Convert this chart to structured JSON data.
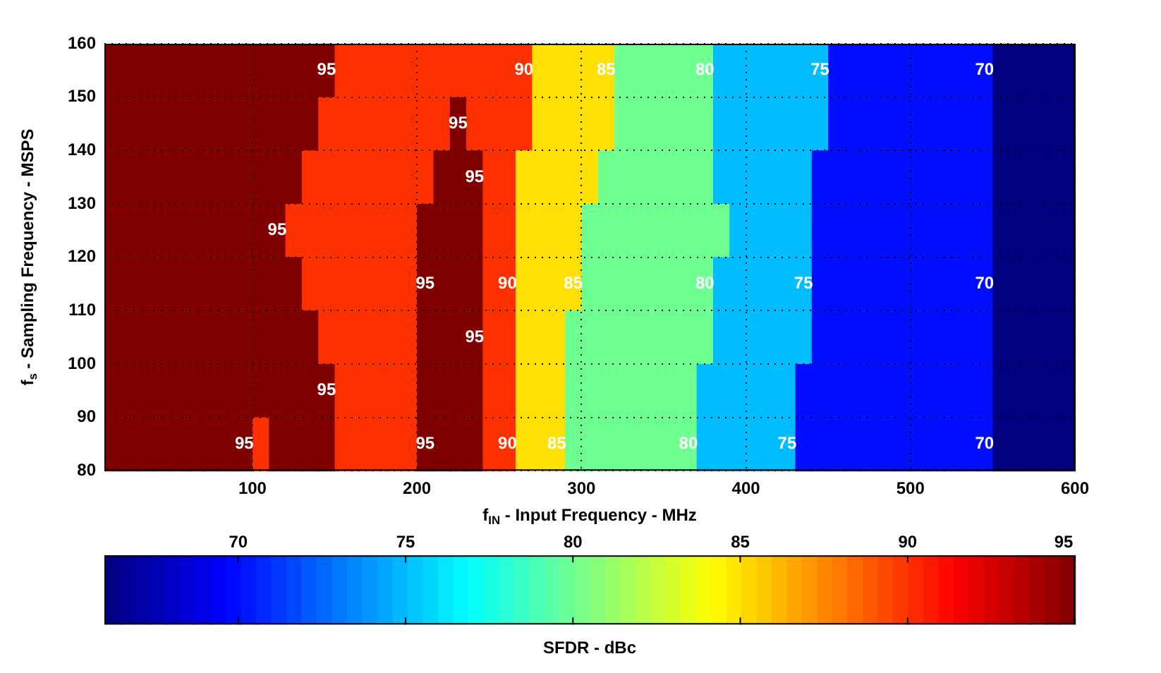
{
  "chart_data": {
    "type": "heatmap",
    "xlabel": "f$_{IN}$ - Input Frequency - MHz",
    "ylabel": "f$_{s}$ - Sampling Frequency - MSPS",
    "clabel": "SFDR - dBc",
    "xlim": [
      10,
      600
    ],
    "xticks": [
      100,
      200,
      300,
      400,
      500,
      600
    ],
    "ylim": [
      80,
      160
    ],
    "yticks": [
      80,
      90,
      100,
      110,
      120,
      130,
      140,
      150,
      160
    ],
    "clim": [
      66,
      95
    ],
    "cticks": [
      70,
      75,
      80,
      85,
      90,
      95
    ],
    "grid": true,
    "cells": [
      [
        95,
        95,
        95,
        95,
        95,
        95,
        95,
        95,
        95,
        95,
        95,
        95,
        95,
        95,
        90,
        90,
        90,
        90,
        90,
        90,
        90,
        90,
        90,
        90,
        90,
        90,
        85,
        85,
        85,
        85,
        85,
        80,
        80,
        80,
        80,
        80,
        80,
        75,
        75,
        75,
        75,
        75,
        75,
        75,
        70,
        70,
        70,
        70,
        70,
        70,
        70,
        70,
        70,
        70,
        66,
        66,
        66,
        66,
        66
      ],
      [
        95,
        95,
        95,
        95,
        95,
        95,
        95,
        95,
        95,
        95,
        95,
        95,
        95,
        90,
        90,
        90,
        90,
        90,
        90,
        90,
        90,
        95,
        90,
        90,
        90,
        90,
        85,
        85,
        85,
        85,
        85,
        80,
        80,
        80,
        80,
        80,
        80,
        75,
        75,
        75,
        75,
        75,
        75,
        75,
        70,
        70,
        70,
        70,
        70,
        70,
        70,
        70,
        70,
        70,
        66,
        66,
        66,
        66,
        66
      ],
      [
        95,
        95,
        95,
        95,
        95,
        95,
        95,
        95,
        95,
        95,
        95,
        95,
        90,
        90,
        90,
        90,
        90,
        90,
        90,
        90,
        95,
        95,
        95,
        90,
        90,
        85,
        85,
        85,
        85,
        85,
        80,
        80,
        80,
        80,
        80,
        80,
        80,
        75,
        75,
        75,
        75,
        75,
        75,
        70,
        70,
        70,
        70,
        70,
        70,
        70,
        70,
        70,
        70,
        70,
        66,
        66,
        66,
        66,
        66
      ],
      [
        95,
        95,
        95,
        95,
        95,
        95,
        95,
        95,
        95,
        95,
        95,
        90,
        90,
        90,
        90,
        90,
        90,
        90,
        90,
        95,
        95,
        95,
        95,
        90,
        90,
        85,
        85,
        85,
        85,
        80,
        80,
        80,
        80,
        80,
        80,
        80,
        80,
        80,
        75,
        75,
        75,
        75,
        75,
        70,
        70,
        70,
        70,
        70,
        70,
        70,
        70,
        70,
        70,
        70,
        66,
        66,
        66,
        66,
        66
      ],
      [
        95,
        95,
        95,
        95,
        95,
        95,
        95,
        95,
        95,
        95,
        95,
        95,
        90,
        90,
        90,
        90,
        90,
        90,
        90,
        95,
        95,
        95,
        95,
        90,
        90,
        85,
        85,
        85,
        85,
        80,
        80,
        80,
        80,
        80,
        80,
        80,
        80,
        75,
        75,
        75,
        75,
        75,
        75,
        70,
        70,
        70,
        70,
        70,
        70,
        70,
        70,
        70,
        70,
        70,
        66,
        66,
        66,
        66,
        66
      ],
      [
        95,
        95,
        95,
        95,
        95,
        95,
        95,
        95,
        95,
        95,
        95,
        95,
        95,
        90,
        90,
        90,
        90,
        90,
        90,
        95,
        95,
        95,
        95,
        90,
        90,
        85,
        85,
        85,
        80,
        80,
        80,
        80,
        80,
        80,
        80,
        80,
        80,
        75,
        75,
        75,
        75,
        75,
        75,
        70,
        70,
        70,
        70,
        70,
        70,
        70,
        70,
        70,
        70,
        70,
        66,
        66,
        66,
        66,
        66
      ],
      [
        95,
        95,
        95,
        95,
        95,
        95,
        95,
        95,
        95,
        95,
        95,
        95,
        95,
        95,
        90,
        90,
        90,
        90,
        90,
        95,
        95,
        95,
        95,
        90,
        90,
        85,
        85,
        85,
        80,
        80,
        80,
        80,
        80,
        80,
        80,
        80,
        75,
        75,
        75,
        75,
        75,
        75,
        70,
        70,
        70,
        70,
        70,
        70,
        70,
        70,
        70,
        70,
        70,
        70,
        66,
        66,
        66,
        66,
        66
      ],
      [
        95,
        95,
        95,
        95,
        95,
        95,
        95,
        95,
        95,
        90,
        95,
        95,
        95,
        95,
        90,
        90,
        90,
        90,
        90,
        95,
        95,
        95,
        95,
        90,
        90,
        85,
        85,
        85,
        80,
        80,
        80,
        80,
        80,
        80,
        80,
        80,
        75,
        75,
        75,
        75,
        75,
        75,
        70,
        70,
        70,
        70,
        70,
        70,
        70,
        70,
        70,
        70,
        70,
        70,
        66,
        66,
        66,
        66,
        66
      ]
    ],
    "cell_labels": [
      [
        null,
        null,
        null,
        null,
        null,
        null,
        null,
        null,
        null,
        null,
        null,
        null,
        null,
        "95",
        null,
        null,
        null,
        null,
        null,
        null,
        null,
        null,
        null,
        null,
        null,
        "90",
        null,
        null,
        null,
        null,
        "85",
        null,
        null,
        null,
        null,
        null,
        "80",
        null,
        null,
        null,
        null,
        null,
        null,
        "75",
        null,
        null,
        null,
        null,
        null,
        null,
        null,
        null,
        null,
        "70",
        null,
        null,
        null,
        null,
        null
      ],
      [
        null,
        null,
        null,
        null,
        null,
        null,
        null,
        null,
        null,
        null,
        null,
        null,
        null,
        null,
        null,
        null,
        null,
        null,
        null,
        null,
        null,
        "95",
        null,
        null,
        null,
        null,
        null,
        null,
        null,
        null,
        null,
        null,
        null,
        null,
        null,
        null,
        null,
        null,
        null,
        null,
        null,
        null,
        null,
        null,
        null,
        null,
        null,
        null,
        null,
        null,
        null,
        null,
        null,
        null,
        null,
        null,
        null,
        null,
        null
      ],
      [
        null,
        null,
        null,
        null,
        null,
        null,
        null,
        null,
        null,
        null,
        null,
        null,
        null,
        null,
        null,
        null,
        null,
        null,
        null,
        null,
        null,
        null,
        "95",
        null,
        null,
        null,
        null,
        null,
        null,
        null,
        null,
        null,
        null,
        null,
        null,
        null,
        null,
        null,
        null,
        null,
        null,
        null,
        null,
        null,
        null,
        null,
        null,
        null,
        null,
        null,
        null,
        null,
        null,
        null,
        null,
        null,
        null,
        null,
        null
      ],
      [
        null,
        null,
        null,
        null,
        null,
        null,
        null,
        null,
        null,
        null,
        "95",
        null,
        null,
        null,
        null,
        null,
        null,
        null,
        null,
        null,
        null,
        null,
        null,
        null,
        null,
        null,
        null,
        null,
        null,
        null,
        null,
        null,
        null,
        null,
        null,
        null,
        null,
        null,
        null,
        null,
        null,
        null,
        null,
        null,
        null,
        null,
        null,
        null,
        null,
        null,
        null,
        null,
        null,
        null,
        null,
        null,
        null,
        null,
        null
      ],
      [
        null,
        null,
        null,
        null,
        null,
        null,
        null,
        null,
        null,
        null,
        null,
        null,
        null,
        null,
        null,
        null,
        null,
        null,
        null,
        "95",
        null,
        null,
        null,
        null,
        "90",
        null,
        null,
        null,
        "85",
        null,
        null,
        null,
        null,
        null,
        null,
        null,
        "80",
        null,
        null,
        null,
        null,
        null,
        "75",
        null,
        null,
        null,
        null,
        null,
        null,
        null,
        null,
        null,
        null,
        "70",
        null,
        null,
        null,
        null,
        null
      ],
      [
        null,
        null,
        null,
        null,
        null,
        null,
        null,
        null,
        null,
        null,
        null,
        null,
        null,
        null,
        null,
        null,
        null,
        null,
        null,
        null,
        null,
        null,
        "95",
        null,
        null,
        null,
        null,
        null,
        null,
        null,
        null,
        null,
        null,
        null,
        null,
        null,
        null,
        null,
        null,
        null,
        null,
        null,
        null,
        null,
        null,
        null,
        null,
        null,
        null,
        null,
        null,
        null,
        null,
        null,
        null,
        null,
        null,
        null,
        null
      ],
      [
        null,
        null,
        null,
        null,
        null,
        null,
        null,
        null,
        null,
        null,
        null,
        null,
        null,
        "95",
        null,
        null,
        null,
        null,
        null,
        null,
        null,
        null,
        null,
        null,
        null,
        null,
        null,
        null,
        null,
        null,
        null,
        null,
        null,
        null,
        null,
        null,
        null,
        null,
        null,
        null,
        null,
        null,
        null,
        null,
        null,
        null,
        null,
        null,
        null,
        null,
        null,
        null,
        null,
        null,
        null,
        null,
        null,
        null,
        null
      ],
      [
        null,
        null,
        null,
        null,
        null,
        null,
        null,
        null,
        "95",
        null,
        null,
        null,
        null,
        null,
        null,
        null,
        null,
        null,
        null,
        "95",
        null,
        null,
        null,
        null,
        "90",
        null,
        null,
        "85",
        null,
        null,
        null,
        null,
        null,
        null,
        null,
        "80",
        null,
        null,
        null,
        null,
        null,
        "75",
        null,
        null,
        null,
        null,
        null,
        null,
        null,
        null,
        null,
        null,
        null,
        "70",
        null,
        null,
        null,
        null,
        null
      ]
    ]
  }
}
